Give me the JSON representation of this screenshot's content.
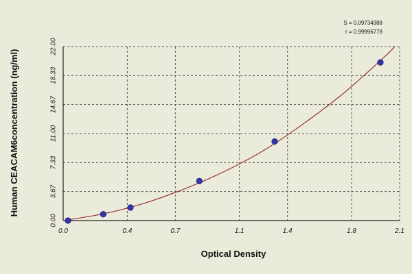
{
  "chart_data": {
    "type": "scatter",
    "xlabel": "Optical Density",
    "ylabel": "Human  CEACAM6concentration (ng/ml)",
    "x_ticks": [
      "0.0",
      "0.4",
      "0.7",
      "1.1",
      "1.4",
      "1.8",
      "2.1"
    ],
    "y_ticks": [
      "0.00",
      "3.67",
      "7.33",
      "11.00",
      "14.67",
      "18.33",
      "22.00"
    ],
    "xlim": [
      0,
      2.1
    ],
    "ylim": [
      0,
      22
    ],
    "grid": true,
    "series": [
      {
        "points": [
          {
            "x": 0.03,
            "y": 0.0
          },
          {
            "x": 0.25,
            "y": 0.8
          },
          {
            "x": 0.42,
            "y": 1.65
          },
          {
            "x": 0.85,
            "y": 5.0
          },
          {
            "x": 1.32,
            "y": 10.0
          },
          {
            "x": 1.98,
            "y": 20.0
          }
        ],
        "color": "#3333aa"
      }
    ],
    "fit_curve": {
      "color": "#993333",
      "points": [
        {
          "x": 0.0,
          "y": 0.0
        },
        {
          "x": 0.25,
          "y": 0.85
        },
        {
          "x": 0.5,
          "y": 2.15
        },
        {
          "x": 0.75,
          "y": 3.95
        },
        {
          "x": 1.0,
          "y": 6.15
        },
        {
          "x": 1.25,
          "y": 8.85
        },
        {
          "x": 1.5,
          "y": 12.25
        },
        {
          "x": 1.75,
          "y": 16.1
        },
        {
          "x": 2.0,
          "y": 20.6
        },
        {
          "x": 2.07,
          "y": 22.0
        }
      ]
    },
    "stats": {
      "line1": "S = 0.09734388",
      "line2": "r = 0.99996778"
    }
  },
  "colors": {
    "background": "#ebebdc",
    "grid": "#555555",
    "axis": "#222222"
  }
}
